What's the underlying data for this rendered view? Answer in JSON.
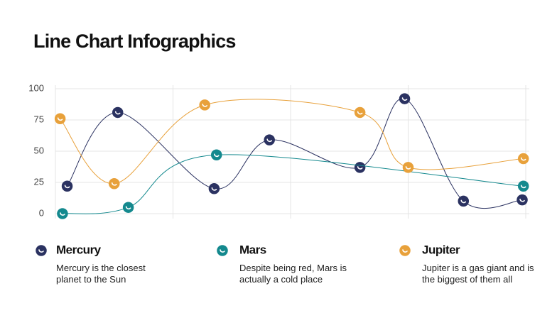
{
  "chart_data": {
    "type": "line",
    "title": "Line Chart Infographics",
    "ylim": [
      0,
      100
    ],
    "yticks": [
      0,
      25,
      50,
      75,
      100
    ],
    "xlim": [
      0,
      4
    ],
    "grid": true,
    "series": [
      {
        "name": "Mercury",
        "color": "#2b3261",
        "description": "Mercury is the closest planet to the Sun",
        "x": [
          0.1,
          0.53,
          1.35,
          1.82,
          2.59,
          2.97,
          3.47,
          3.97
        ],
        "values": [
          22,
          81,
          20,
          59,
          37,
          92,
          10,
          11
        ]
      },
      {
        "name": "Mars",
        "color": "#14898e",
        "description": "Despite being red, Mars is actually a cold place",
        "x": [
          0.06,
          0.62,
          1.37,
          3.98
        ],
        "values": [
          0,
          5,
          47,
          22
        ]
      },
      {
        "name": "Jupiter",
        "color": "#e8a13b",
        "description": "Jupiter is a gas giant and is the biggest of them all",
        "x": [
          0.04,
          0.5,
          1.27,
          2.59,
          3.0,
          3.98
        ],
        "values": [
          76,
          24,
          87,
          81,
          37,
          44
        ]
      }
    ]
  }
}
